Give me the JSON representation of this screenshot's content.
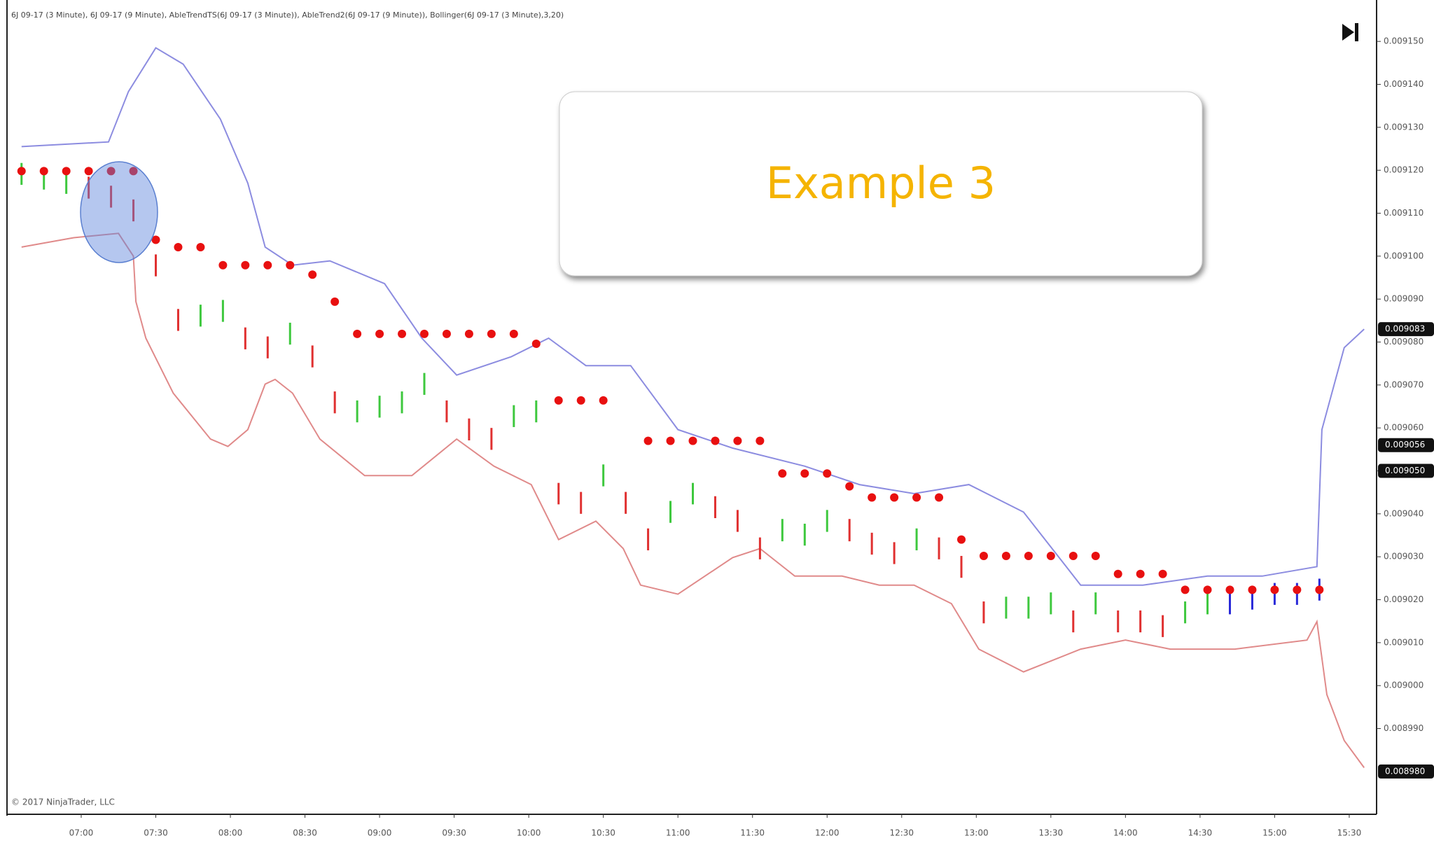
{
  "chart_data": {
    "type": "stock",
    "title": "6J 09-17 (3 Minute), 6J 09-17 (9 Minute), AbleTrendTS(6J 09-17 (3 Minute)), AbleTrend2(6J 09-17 (9 Minute)), Bollinger(6J 09-17 (3 Minute),3,20)",
    "annotation": "Example 3",
    "copyright": "© 2017 NinjaTrader, LLC",
    "xlim": [
      391,
      941
    ],
    "ylim": [
      0.0089702,
      0.0091585
    ],
    "xticks": [
      {
        "value": 420,
        "label": "07:00"
      },
      {
        "value": 450,
        "label": "07:30"
      },
      {
        "value": 480,
        "label": "08:00"
      },
      {
        "value": 510,
        "label": "08:30"
      },
      {
        "value": 540,
        "label": "09:00"
      },
      {
        "value": 570,
        "label": "09:30"
      },
      {
        "value": 600,
        "label": "10:00"
      },
      {
        "value": 630,
        "label": "10:30"
      },
      {
        "value": 660,
        "label": "11:00"
      },
      {
        "value": 690,
        "label": "11:30"
      },
      {
        "value": 720,
        "label": "12:00"
      },
      {
        "value": 750,
        "label": "12:30"
      },
      {
        "value": 780,
        "label": "13:00"
      },
      {
        "value": 810,
        "label": "13:30"
      },
      {
        "value": 840,
        "label": "14:00"
      },
      {
        "value": 870,
        "label": "14:30"
      },
      {
        "value": 900,
        "label": "15:00"
      },
      {
        "value": 930,
        "label": "15:30"
      }
    ],
    "yticks": [
      {
        "value": 0.00915,
        "label": "0.009150"
      },
      {
        "value": 0.00914,
        "label": "0.009140"
      },
      {
        "value": 0.00913,
        "label": "0.009130"
      },
      {
        "value": 0.00912,
        "label": "0.009120"
      },
      {
        "value": 0.00911,
        "label": "0.009110"
      },
      {
        "value": 0.0091,
        "label": "0.009100"
      },
      {
        "value": 0.00909,
        "label": "0.009090"
      },
      {
        "value": 0.00908,
        "label": "0.009080"
      },
      {
        "value": 0.00907,
        "label": "0.009070"
      },
      {
        "value": 0.00906,
        "label": "0.009060"
      },
      {
        "value": 0.00905,
        "label": "0.009050"
      },
      {
        "value": 0.00904,
        "label": "0.009040"
      },
      {
        "value": 0.00903,
        "label": "0.009030"
      },
      {
        "value": 0.00902,
        "label": "0.009020"
      },
      {
        "value": 0.00901,
        "label": "0.009010"
      },
      {
        "value": 0.009,
        "label": "0.009000"
      },
      {
        "value": 0.00899,
        "label": "0.008990"
      }
    ],
    "price_markers": [
      {
        "value": 0.009083,
        "label": "0.009083"
      },
      {
        "value": 0.009056,
        "label": "0.009056"
      },
      {
        "value": 0.00905,
        "label": "0.009050"
      },
      {
        "value": 0.00898,
        "label": "0.008980"
      }
    ],
    "x": [
      396,
      405,
      414,
      423,
      432,
      441,
      450,
      459,
      468,
      477,
      486,
      495,
      504,
      513,
      522,
      531,
      540,
      549,
      558,
      567,
      576,
      585,
      594,
      603,
      612,
      621,
      630,
      639,
      648,
      657,
      666,
      675,
      684,
      693,
      702,
      711,
      720,
      729,
      738,
      747,
      756,
      765,
      774,
      783,
      792,
      801,
      810,
      819,
      828,
      837,
      846,
      855,
      864,
      873,
      882,
      891,
      900,
      909,
      918
    ],
    "bars": {
      "high": [
        0.0091217,
        0.0091207,
        0.0091196,
        0.0091185,
        0.0091164,
        0.0091132,
        0.0091004,
        0.0090877,
        0.0090887,
        0.0090898,
        0.0090834,
        0.0090813,
        0.0090845,
        0.0090792,
        0.0090685,
        0.0090664,
        0.0090675,
        0.0090685,
        0.0090728,
        0.0090664,
        0.0090622,
        0.00906,
        0.0090653,
        0.0090664,
        0.0090472,
        0.0090451,
        0.0090515,
        0.0090451,
        0.0090366,
        0.009043,
        0.0090472,
        0.0090441,
        0.0090409,
        0.0090345,
        0.0090388,
        0.0090377,
        0.0090409,
        0.0090388,
        0.0090356,
        0.0090334,
        0.0090366,
        0.0090345,
        0.0090302,
        0.0090196,
        0.0090207,
        0.0090207,
        0.0090217,
        0.0090175,
        0.0090217,
        0.0090175,
        0.0090175,
        0.0090164,
        0.0090196,
        0.0090217,
        0.0090217,
        0.0090228,
        0.0090239,
        0.0090239,
        0.0090249
      ],
      "low": [
        0.0091166,
        0.0091155,
        0.0091145,
        0.0091134,
        0.0091113,
        0.0091081,
        0.0090953,
        0.0090826,
        0.0090836,
        0.0090847,
        0.0090783,
        0.0090762,
        0.0090794,
        0.0090741,
        0.0090634,
        0.0090613,
        0.0090624,
        0.0090634,
        0.0090677,
        0.0090613,
        0.0090571,
        0.0090549,
        0.0090602,
        0.0090613,
        0.0090422,
        0.00904,
        0.0090464,
        0.00904,
        0.0090315,
        0.0090379,
        0.0090422,
        0.009039,
        0.0090358,
        0.0090294,
        0.0090336,
        0.0090326,
        0.0090358,
        0.0090336,
        0.0090305,
        0.0090283,
        0.0090315,
        0.0090294,
        0.0090251,
        0.0090145,
        0.0090156,
        0.0090156,
        0.0090166,
        0.0090124,
        0.0090166,
        0.0090124,
        0.0090124,
        0.0090113,
        0.0090145,
        0.0090166,
        0.0090166,
        0.0090177,
        0.0090188,
        0.0090188,
        0.0090198
      ],
      "colors": [
        "#3ec83e",
        "#3ec83e",
        "#3ec83e",
        "#e03030",
        "#e03030",
        "#e03030",
        "#e03030",
        "#e03030",
        "#3ec83e",
        "#3ec83e",
        "#e03030",
        "#e03030",
        "#3ec83e",
        "#e03030",
        "#e03030",
        "#3ec83e",
        "#3ec83e",
        "#3ec83e",
        "#3ec83e",
        "#e03030",
        "#e03030",
        "#e03030",
        "#3ec83e",
        "#3ec83e",
        "#e03030",
        "#e03030",
        "#3ec83e",
        "#e03030",
        "#e03030",
        "#3ec83e",
        "#3ec83e",
        "#e03030",
        "#e03030",
        "#e03030",
        "#3ec83e",
        "#3ec83e",
        "#3ec83e",
        "#e03030",
        "#e03030",
        "#e03030",
        "#3ec83e",
        "#e03030",
        "#e03030",
        "#e03030",
        "#3ec83e",
        "#3ec83e",
        "#3ec83e",
        "#e03030",
        "#3ec83e",
        "#e03030",
        "#e03030",
        "#e03030",
        "#3ec83e",
        "#3ec83e",
        "#2a2ad8",
        "#2a2ad8",
        "#2a2ad8",
        "#2a2ad8",
        "#2a2ad8"
      ]
    },
    "stops": {
      "color": "#e81010",
      "values": [
        0.0091198,
        0.0091198,
        0.0091198,
        0.0091198,
        0.0091198,
        0.0091198,
        0.0091038,
        0.0091021,
        0.0091021,
        0.0090979,
        0.0090979,
        0.0090979,
        0.0090979,
        0.0090957,
        0.0090894,
        0.0090819,
        0.0090819,
        0.0090819,
        0.0090819,
        0.0090819,
        0.0090819,
        0.0090819,
        0.0090819,
        0.0090796,
        0.0090664,
        0.0090664,
        0.0090664,
        null,
        0.009057,
        0.009057,
        0.009057,
        0.009057,
        0.009057,
        0.009057,
        0.0090494,
        0.0090494,
        0.0090494,
        0.0090464,
        0.0090438,
        0.0090438,
        0.0090438,
        0.0090438,
        0.009034,
        0.0090302,
        0.0090302,
        0.0090302,
        0.0090302,
        0.0090302,
        0.0090302,
        0.009026,
        0.009026,
        0.009026,
        0.0090223,
        0.0090223,
        0.0090223,
        0.0090223,
        0.0090223,
        0.0090223,
        0.0090223
      ]
    },
    "bands": {
      "upper": {
        "color": "#8c8ce0",
        "x": [
          396,
          431,
          439,
          450,
          461,
          476,
          487,
          494,
          505,
          520,
          542,
          557,
          571,
          593,
          608,
          623,
          641,
          660,
          682,
          711,
          733,
          755,
          777,
          799,
          822,
          847,
          873,
          895,
          917,
          919,
          928,
          936
        ],
        "values": [
          0.0091255,
          0.0091266,
          0.0091383,
          0.0091485,
          0.0091447,
          0.0091319,
          0.009117,
          0.0091021,
          0.0090979,
          0.0090989,
          0.0090936,
          0.0090809,
          0.0090723,
          0.0090766,
          0.0090809,
          0.0090745,
          0.0090745,
          0.0090596,
          0.0090553,
          0.0090511,
          0.0090468,
          0.0090447,
          0.0090468,
          0.0090404,
          0.0090234,
          0.0090234,
          0.0090255,
          0.0090255,
          0.0090277,
          0.0090596,
          0.0090787,
          0.009083
        ]
      },
      "lower": {
        "color": "#e08a8a",
        "x": [
          396,
          417,
          435,
          441,
          442,
          446,
          457,
          472,
          479,
          487,
          494,
          498,
          505,
          516,
          534,
          553,
          571,
          586,
          601,
          612,
          627,
          638,
          645,
          660,
          682,
          693,
          707,
          726,
          741,
          755,
          770,
          781,
          799,
          822,
          840,
          858,
          884,
          913,
          917,
          921,
          928,
          936
        ],
        "values": [
          0.0091021,
          0.0091043,
          0.0091053,
          0.0091,
          0.0090894,
          0.0090809,
          0.0090681,
          0.0090574,
          0.0090557,
          0.0090596,
          0.0090702,
          0.0090713,
          0.0090681,
          0.0090574,
          0.0090489,
          0.0090489,
          0.0090574,
          0.0090511,
          0.0090468,
          0.009034,
          0.0090383,
          0.0090319,
          0.0090234,
          0.0090213,
          0.0090298,
          0.0090319,
          0.0090255,
          0.0090255,
          0.0090234,
          0.0090234,
          0.0090191,
          0.0090085,
          0.0090032,
          0.0090085,
          0.0090106,
          0.0090085,
          0.0090085,
          0.0090106,
          0.0090149,
          0.0089979,
          0.0089872,
          0.0089809
        ]
      }
    }
  }
}
